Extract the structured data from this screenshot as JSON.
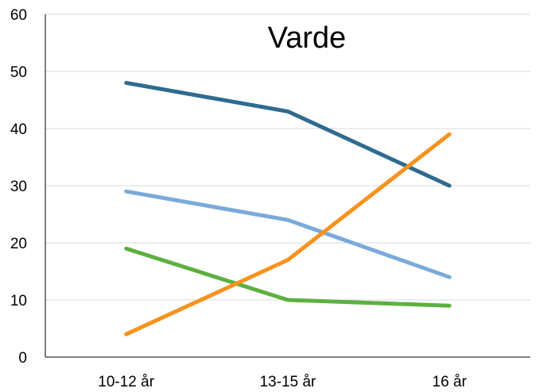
{
  "chart_data": {
    "type": "line",
    "title": "Varde",
    "xlabel": "",
    "ylabel": "",
    "categories": [
      "10-12 år",
      "13-15 år",
      "16 år"
    ],
    "ylim": [
      0,
      60
    ],
    "yticks": [
      0,
      10,
      20,
      30,
      40,
      50,
      60
    ],
    "grid": true,
    "legend": "none",
    "series": [
      {
        "values": [
          48,
          43,
          30
        ],
        "color": "#2e6b8f"
      },
      {
        "values": [
          29,
          24,
          14
        ],
        "color": "#7aaadb"
      },
      {
        "values": [
          19,
          10,
          9
        ],
        "color": "#5db040"
      },
      {
        "values": [
          4,
          17,
          39
        ],
        "color": "#f7921e"
      }
    ]
  }
}
